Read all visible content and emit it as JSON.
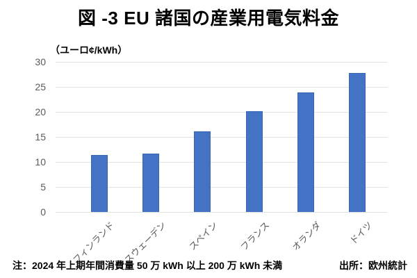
{
  "title": "図 -3 EU 諸国の産業用電気料金",
  "chart_data": {
    "type": "bar",
    "title": "図 -3 EU 諸国の産業用電気料金",
    "unit_label": "（ユーロ¢/kWh）",
    "categories": [
      "フィンランド",
      "スウェーデン",
      "スペイン",
      "フランス",
      "オランダ",
      "ドイツ"
    ],
    "values": [
      11.4,
      11.6,
      16.1,
      20.2,
      23.9,
      27.8
    ],
    "xlabel": "",
    "ylabel": "ユーロ¢/kWh",
    "ylim": [
      0,
      30
    ],
    "yticks": [
      0,
      5,
      10,
      15,
      20,
      25,
      30
    ],
    "grid": true,
    "legend_position": "none",
    "colors": {
      "bar_fill": "#4472C4",
      "bar_border": "#3767B1",
      "gridline": "#E2E2E2",
      "tick_label": "#595959",
      "category_label": "#595959"
    }
  },
  "footer": {
    "note": "注：2024 年上期年間消費量 50 万 kWh 以上 200 万 kWh 未満",
    "source": "出所：欧州統計"
  }
}
